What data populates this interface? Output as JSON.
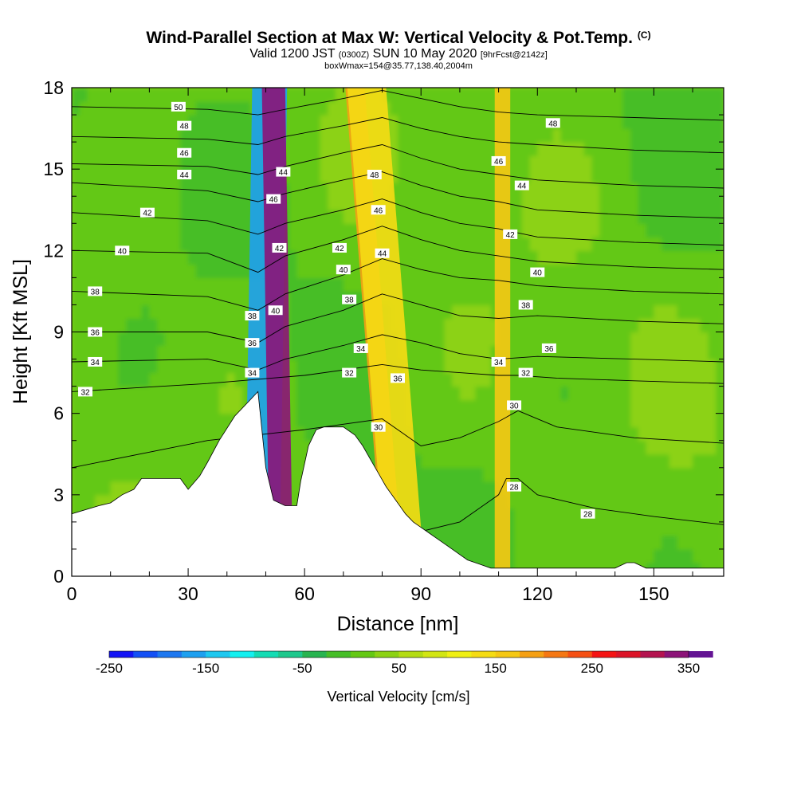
{
  "chart_data": {
    "type": "heatmap",
    "title": "Wind-Parallel Section at Max W: Vertical Velocity & Pot.Temp.",
    "title_mark": "(C)",
    "subtitle_main_a": "Valid 1200 JST",
    "subtitle_small_a": "(0300Z)",
    "subtitle_main_b": "SUN 10 May 2020",
    "subtitle_small_b": "[9hrFcst@2142z]",
    "subtitle_line2": "boxWmax=154@35.77,138.40,2004m",
    "xlabel": "Distance [nm]",
    "ylabel": "Height [Kft MSL]",
    "xlim": [
      0,
      168
    ],
    "ylim": [
      0,
      18
    ],
    "x_ticks": [
      0,
      30,
      60,
      90,
      120,
      150
    ],
    "y_ticks": [
      0,
      3,
      6,
      9,
      12,
      15,
      18
    ],
    "colorbar": {
      "label": "Vertical Velocity [cm/s]",
      "range": [
        -250,
        350
      ],
      "step": 25,
      "tick_values": [
        "-250",
        "-150",
        "-50",
        "50",
        "150",
        "250",
        "350"
      ],
      "colors": [
        "#1414f5",
        "#1450f5",
        "#1e78f0",
        "#1ea0f0",
        "#1ec8f0",
        "#14f0f0",
        "#14dcb4",
        "#1ec88c",
        "#28b450",
        "#46be28",
        "#64c814",
        "#8cd214",
        "#b4dc14",
        "#d2e614",
        "#f0f014",
        "#f5dc14",
        "#f5c814",
        "#f5a014",
        "#f57814",
        "#f55014",
        "#f51414",
        "#dc1428",
        "#b41450",
        "#8c1478",
        "#641494"
      ]
    },
    "terrain_profile": {
      "x": [
        0,
        7,
        10,
        13,
        16,
        18,
        22,
        28,
        30,
        33,
        35,
        38,
        42,
        48,
        50,
        52,
        55,
        58,
        59,
        61,
        63,
        65,
        67,
        70,
        73,
        75,
        77,
        79,
        81,
        84,
        86,
        88,
        90,
        92,
        94,
        96,
        98,
        100,
        102,
        104,
        106,
        108,
        110,
        140,
        143,
        145,
        148,
        150,
        152,
        168
      ],
      "h": [
        2.3,
        2.6,
        2.7,
        3.0,
        3.2,
        3.6,
        3.6,
        3.6,
        3.2,
        3.7,
        4.2,
        5.0,
        5.9,
        6.8,
        4.0,
        2.8,
        2.6,
        2.6,
        3.5,
        4.8,
        5.4,
        5.5,
        5.5,
        5.5,
        5.2,
        4.8,
        4.3,
        3.8,
        3.3,
        2.7,
        2.3,
        2.0,
        1.8,
        1.6,
        1.4,
        1.2,
        1.0,
        0.8,
        0.6,
        0.5,
        0.4,
        0.3,
        0.3,
        0.3,
        0.5,
        0.5,
        0.3,
        0.3,
        0.3,
        0.3
      ]
    },
    "vertical_velocity_features": [
      {
        "x0": 48,
        "x1": 57,
        "top_x": 51,
        "bottom_x": 49,
        "value": -175
      },
      {
        "x0": 50,
        "x1": 56,
        "top_x": 52,
        "bottom_x": 54,
        "value": 325
      },
      {
        "x0": 73,
        "x1": 78,
        "top_x": 73,
        "bottom_x": 83,
        "value": 175
      },
      {
        "x0": 76,
        "x1": 86,
        "top_x": 76,
        "bottom_x": 86,
        "value": 125
      },
      {
        "x0": 108,
        "x1": 112,
        "top_x": 111,
        "bottom_x": 111,
        "value": 150
      }
    ],
    "theta_contours": [
      {
        "value": 28,
        "label": "28",
        "x": [
          0,
          60,
          80,
          100,
          110,
          112,
          115,
          120,
          135,
          150,
          168
        ],
        "h": [
          0.5,
          0.9,
          1.3,
          2.0,
          3.0,
          3.6,
          3.6,
          3.0,
          2.5,
          2.2,
          1.9
        ]
      },
      {
        "value": 30,
        "label": "30",
        "x": [
          0,
          35,
          60,
          80,
          90,
          100,
          110,
          115,
          125,
          145,
          168
        ],
        "h": [
          4.0,
          5.0,
          5.4,
          5.8,
          4.8,
          5.1,
          5.7,
          6.1,
          5.5,
          5.1,
          4.9
        ]
      },
      {
        "value": 32,
        "label": "32",
        "x": [
          0,
          35,
          60,
          80,
          90,
          100,
          110,
          115,
          125,
          145,
          168
        ],
        "h": [
          6.8,
          7.1,
          7.4,
          7.8,
          7.6,
          7.5,
          7.4,
          7.4,
          7.3,
          7.2,
          7.1
        ]
      },
      {
        "value": 34,
        "label": "34",
        "x": [
          0,
          35,
          48,
          55,
          70,
          80,
          90,
          100,
          110,
          120,
          145,
          168
        ],
        "h": [
          7.9,
          8.0,
          7.6,
          8.0,
          8.5,
          8.9,
          8.6,
          8.2,
          8.0,
          8.1,
          8.0,
          7.9
        ]
      },
      {
        "value": 36,
        "label": "36",
        "x": [
          0,
          35,
          48,
          55,
          70,
          80,
          90,
          100,
          110,
          120,
          145,
          168
        ],
        "h": [
          9.0,
          9.0,
          8.6,
          9.2,
          9.8,
          10.4,
          10.0,
          9.6,
          9.5,
          9.6,
          9.4,
          9.3
        ]
      },
      {
        "value": 38,
        "label": "38",
        "x": [
          0,
          35,
          48,
          55,
          70,
          80,
          90,
          100,
          110,
          120,
          145,
          168
        ],
        "h": [
          10.5,
          10.3,
          9.8,
          10.4,
          11.1,
          11.7,
          11.3,
          11.0,
          10.9,
          10.7,
          10.5,
          10.4
        ]
      },
      {
        "value": 40,
        "label": "40",
        "x": [
          0,
          35,
          48,
          55,
          70,
          80,
          90,
          100,
          110,
          120,
          145,
          168
        ],
        "h": [
          12.0,
          11.9,
          11.2,
          11.8,
          12.4,
          12.9,
          12.4,
          12.0,
          11.8,
          11.6,
          11.4,
          11.3
        ]
      },
      {
        "value": 42,
        "label": "42",
        "x": [
          0,
          35,
          48,
          55,
          70,
          80,
          90,
          100,
          110,
          120,
          145,
          168
        ],
        "h": [
          13.4,
          13.1,
          12.6,
          13.0,
          13.5,
          13.9,
          13.4,
          13.0,
          12.8,
          12.5,
          12.3,
          12.2
        ]
      },
      {
        "value": 44,
        "label": "44",
        "x": [
          0,
          35,
          48,
          55,
          70,
          80,
          90,
          100,
          110,
          120,
          145,
          168
        ],
        "h": [
          14.5,
          14.2,
          13.8,
          14.1,
          14.6,
          14.9,
          14.4,
          14.0,
          13.8,
          13.5,
          13.3,
          13.2
        ]
      },
      {
        "value": 46,
        "label": "46",
        "x": [
          0,
          35,
          48,
          55,
          70,
          80,
          90,
          100,
          110,
          120,
          145,
          168
        ],
        "h": [
          15.2,
          15.1,
          14.8,
          15.1,
          15.6,
          15.9,
          15.4,
          15.0,
          14.8,
          14.6,
          14.4,
          14.3
        ]
      },
      {
        "value": 48,
        "label": "48",
        "x": [
          0,
          35,
          48,
          55,
          70,
          80,
          90,
          100,
          110,
          120,
          145,
          168
        ],
        "h": [
          16.2,
          16.1,
          15.9,
          16.2,
          16.6,
          16.9,
          16.5,
          16.2,
          16.0,
          15.9,
          15.7,
          15.6
        ]
      },
      {
        "value": 50,
        "label": "50",
        "x": [
          0,
          35,
          48,
          55,
          70,
          80,
          90,
          100,
          110,
          120,
          145,
          168
        ],
        "h": [
          17.3,
          17.2,
          17.0,
          17.2,
          17.6,
          17.9,
          17.6,
          17.3,
          17.1,
          17.0,
          16.9,
          16.8
        ]
      }
    ],
    "theta_labels": [
      {
        "text": "50",
        "x": 27.5,
        "h": 17.3
      },
      {
        "text": "48",
        "x": 29,
        "h": 16.6
      },
      {
        "text": "46",
        "x": 29,
        "h": 15.6
      },
      {
        "text": "44",
        "x": 29,
        "h": 14.8
      },
      {
        "text": "42",
        "x": 19.5,
        "h": 13.4
      },
      {
        "text": "40",
        "x": 13,
        "h": 12.0
      },
      {
        "text": "38",
        "x": 6,
        "h": 10.5
      },
      {
        "text": "36",
        "x": 6,
        "h": 9.0
      },
      {
        "text": "34",
        "x": 6,
        "h": 7.9
      },
      {
        "text": "32",
        "x": 3.5,
        "h": 6.8
      },
      {
        "text": "38",
        "x": 46.5,
        "h": 9.6
      },
      {
        "text": "36",
        "x": 46.5,
        "h": 8.6
      },
      {
        "text": "34",
        "x": 46.5,
        "h": 7.5
      },
      {
        "text": "46",
        "x": 52,
        "h": 13.9
      },
      {
        "text": "44",
        "x": 54.5,
        "h": 14.9
      },
      {
        "text": "42",
        "x": 53.5,
        "h": 12.1
      },
      {
        "text": "40",
        "x": 52.5,
        "h": 9.8
      },
      {
        "text": "48",
        "x": 78,
        "h": 14.8
      },
      {
        "text": "46",
        "x": 79,
        "h": 13.5
      },
      {
        "text": "44",
        "x": 80,
        "h": 11.9
      },
      {
        "text": "42",
        "x": 69,
        "h": 12.1
      },
      {
        "text": "40",
        "x": 70,
        "h": 11.3
      },
      {
        "text": "38",
        "x": 71.5,
        "h": 10.2
      },
      {
        "text": "34",
        "x": 74.5,
        "h": 8.4
      },
      {
        "text": "32",
        "x": 71.5,
        "h": 7.5
      },
      {
        "text": "36",
        "x": 84,
        "h": 7.3
      },
      {
        "text": "30",
        "x": 79,
        "h": 5.5
      },
      {
        "text": "48",
        "x": 124,
        "h": 16.7
      },
      {
        "text": "46",
        "x": 110,
        "h": 15.3
      },
      {
        "text": "44",
        "x": 116,
        "h": 14.4
      },
      {
        "text": "42",
        "x": 113,
        "h": 12.6
      },
      {
        "text": "40",
        "x": 120,
        "h": 11.2
      },
      {
        "text": "38",
        "x": 117,
        "h": 10.0
      },
      {
        "text": "36",
        "x": 123,
        "h": 8.4
      },
      {
        "text": "34",
        "x": 110,
        "h": 7.9
      },
      {
        "text": "32",
        "x": 117,
        "h": 7.5
      },
      {
        "text": "30",
        "x": 114,
        "h": 6.3
      },
      {
        "text": "28",
        "x": 114,
        "h": 3.3
      },
      {
        "text": "28",
        "x": 133,
        "h": 2.3
      }
    ]
  }
}
